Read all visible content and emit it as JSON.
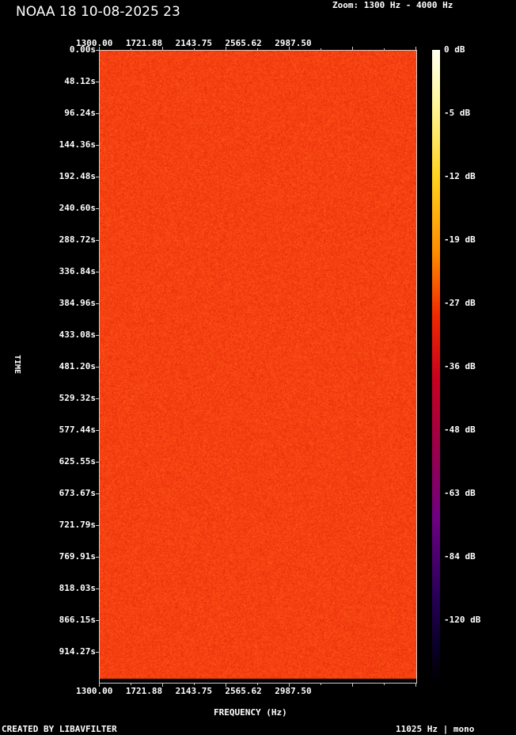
{
  "title": "NOAA 18 10-08-2025 23",
  "zoom_label": "Zoom: 1300 Hz - 4000 Hz",
  "footer_left": "CREATED BY LIBAVFILTER",
  "footer_right": "11025 Hz | mono",
  "chart_data": {
    "type": "heatmap",
    "xlabel": "FREQUENCY (Hz)",
    "ylabel": "TIME",
    "xlim": [
      1300,
      4000
    ],
    "x_ticks": [
      "1300.00",
      "1721.88",
      "2143.75",
      "2565.62",
      "2987.50"
    ],
    "y_ticks": [
      "0.00s",
      "48.12s",
      "96.24s",
      "144.36s",
      "192.48s",
      "240.60s",
      "288.72s",
      "336.84s",
      "384.96s",
      "433.08s",
      "481.20s",
      "529.32s",
      "577.44s",
      "625.55s",
      "673.67s",
      "721.79s",
      "769.91s",
      "818.03s",
      "866.15s",
      "914.27s"
    ],
    "colorbar_ticks": [
      "0 dB",
      "-5 dB",
      "-12 dB",
      "-19 dB",
      "-27 dB",
      "-36 dB",
      "-48 dB",
      "-63 dB",
      "-84 dB",
      "-120 dB"
    ],
    "dominant_color": "#f03a10",
    "note_level_db": -22
  }
}
